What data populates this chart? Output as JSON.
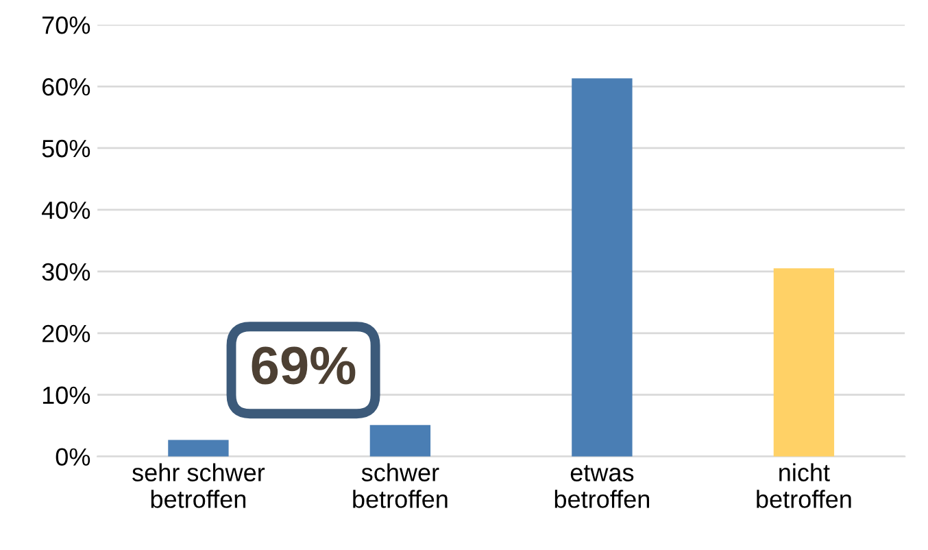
{
  "chart_data": {
    "type": "bar",
    "categories": [
      "sehr schwer\nbetroffen",
      "schwer\nbetroffen",
      "etwas\nbetroffen",
      "nicht\nbetroffen"
    ],
    "values": [
      2.7,
      5.1,
      61.3,
      30.5
    ],
    "colors": [
      "#4a7eb4",
      "#4a7eb4",
      "#4a7eb4",
      "#ffd166"
    ],
    "ylim": [
      0,
      70
    ],
    "yticks": [
      {
        "value": 0,
        "label": "0%"
      },
      {
        "value": 10,
        "label": "10%"
      },
      {
        "value": 20,
        "label": "20%"
      },
      {
        "value": 30,
        "label": "30%"
      },
      {
        "value": 40,
        "label": "40%"
      },
      {
        "value": 50,
        "label": "50%"
      },
      {
        "value": 60,
        "label": "60%"
      },
      {
        "value": 70,
        "label": "70%"
      }
    ],
    "grid": "y",
    "annotations": [
      "69%"
    ]
  }
}
